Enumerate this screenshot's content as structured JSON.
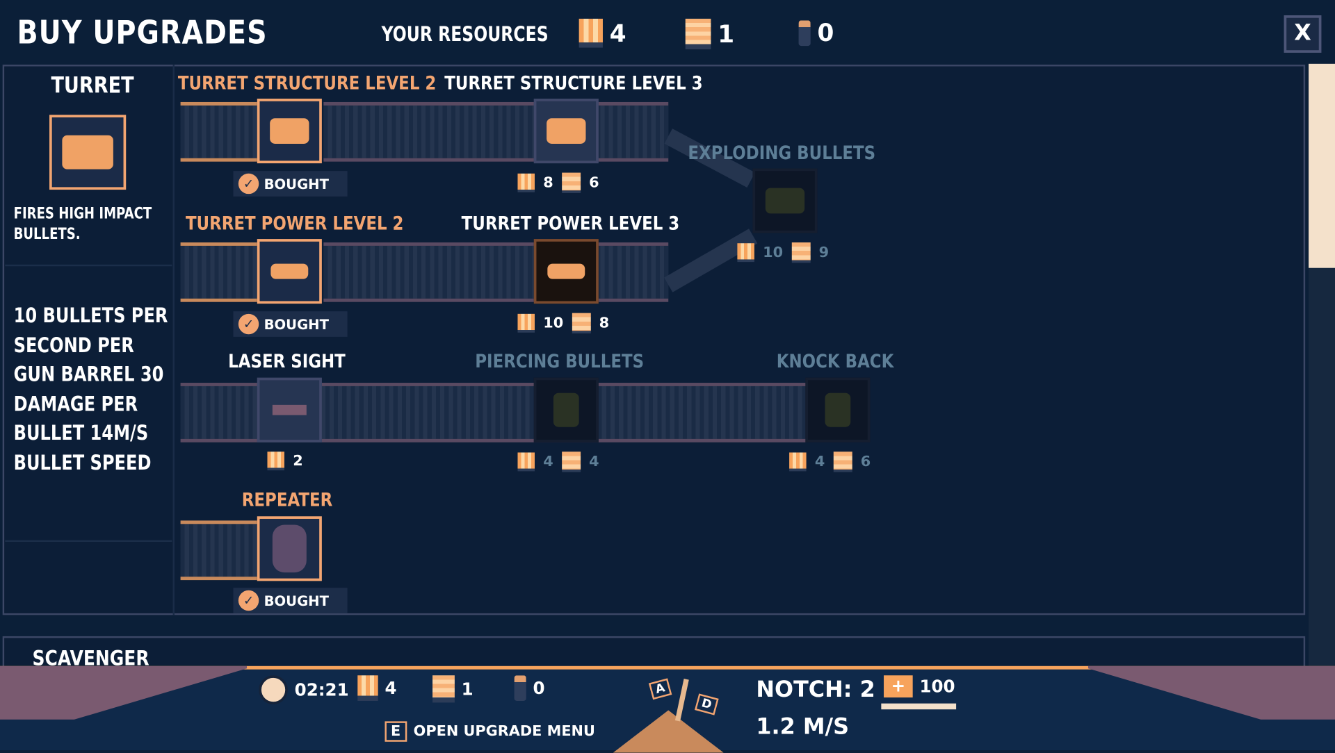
{
  "header": {
    "title": "BUY UPGRADES",
    "resources_label": "YOUR RESOURCES",
    "resources": [
      {
        "icon": "bullets-icon",
        "value": "4"
      },
      {
        "icon": "wood-icon",
        "value": "1"
      },
      {
        "icon": "person-icon",
        "value": "0"
      }
    ],
    "close_label": "X"
  },
  "sidebar": {
    "name": "TURRET",
    "description": "FIRES HIGH IMPACT BULLETS.",
    "stats": "10 BULLETS PER SECOND PER GUN BARREL 30 DAMAGE PER BULLET 14M/S BULLET SPEED"
  },
  "upgrades": [
    {
      "title": "TURRET STRUCTURE LEVEL 2",
      "state": "bought",
      "status": "BOUGHT"
    },
    {
      "title": "TURRET STRUCTURE LEVEL 3",
      "state": "available",
      "cost": {
        "bullets": "8",
        "wood": "6"
      }
    },
    {
      "title": "EXPLODING BULLETS",
      "state": "locked",
      "cost": {
        "bullets": "10",
        "wood": "9"
      }
    },
    {
      "title": "TURRET POWER LEVEL 2",
      "state": "bought",
      "status": "BOUGHT"
    },
    {
      "title": "TURRET POWER LEVEL 3",
      "state": "available",
      "cost": {
        "bullets": "10",
        "wood": "8"
      }
    },
    {
      "title": "LASER SIGHT",
      "state": "available",
      "cost": {
        "bullets": "2"
      }
    },
    {
      "title": "PIERCING BULLETS",
      "state": "locked",
      "cost": {
        "bullets": "4",
        "wood": "4"
      }
    },
    {
      "title": "KNOCK BACK",
      "state": "locked",
      "cost": {
        "bullets": "4",
        "wood": "6"
      }
    },
    {
      "title": "REPEATER",
      "state": "bought",
      "status": "BOUGHT"
    }
  ],
  "next_section": "SCAVENGER",
  "hud": {
    "time": "02:21",
    "bullets": "4",
    "wood": "1",
    "people": "0",
    "key_a": "A",
    "key_d": "D",
    "notch": "NOTCH: 2",
    "speed": "1.2 M/S",
    "health": "100",
    "health_fraction": 1.0,
    "upgrade_key": "E",
    "upgrade_hint": "OPEN UPGRADE MENU"
  },
  "colors": {
    "background": "#0b1f38",
    "accent": "#f3a571",
    "locked": "#5e7f97",
    "hud": "#0f294a"
  }
}
